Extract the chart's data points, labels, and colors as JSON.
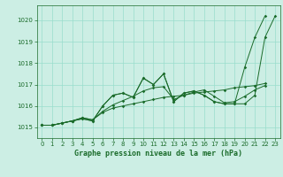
{
  "title": "Graphe pression niveau de la mer (hPa)",
  "background_color": "#cceee4",
  "grid_color": "#99ddcc",
  "line_color": "#1a6b2a",
  "xlim": [
    -0.5,
    23.5
  ],
  "ylim": [
    1014.5,
    1020.7
  ],
  "yticks": [
    1015,
    1016,
    1017,
    1018,
    1019,
    1020
  ],
  "xticks": [
    0,
    1,
    2,
    3,
    4,
    5,
    6,
    7,
    8,
    9,
    10,
    11,
    12,
    13,
    14,
    15,
    16,
    17,
    18,
    19,
    20,
    21,
    22,
    23
  ],
  "series": [
    [
      1015.1,
      1015.1,
      1015.2,
      1015.3,
      1015.4,
      1015.3,
      1016.0,
      1016.5,
      1016.6,
      1016.4,
      1017.3,
      1017.0,
      1017.5,
      1016.2,
      1016.6,
      1016.7,
      1016.5,
      1016.2,
      1016.1,
      1016.1,
      1017.8,
      1019.2,
      1020.2,
      null
    ],
    [
      1015.1,
      1015.1,
      1015.2,
      1015.3,
      1015.45,
      1015.35,
      1015.75,
      1016.05,
      1016.25,
      1016.45,
      1016.7,
      1016.85,
      1016.9,
      1016.3,
      1016.5,
      1016.65,
      1016.75,
      1016.45,
      1016.15,
      1016.2,
      1016.45,
      1016.75,
      1016.95,
      null
    ],
    [
      1015.1,
      1015.1,
      1015.2,
      1015.3,
      1015.45,
      1015.35,
      1015.7,
      1015.9,
      1016.0,
      1016.1,
      1016.2,
      1016.3,
      1016.4,
      1016.45,
      1016.5,
      1016.6,
      1016.65,
      1016.7,
      1016.75,
      1016.85,
      1016.9,
      1016.95,
      1017.05,
      null
    ],
    [
      1015.1,
      1015.1,
      1015.2,
      1015.3,
      1015.4,
      1015.3,
      1016.0,
      1016.5,
      1016.6,
      1016.4,
      1017.3,
      1017.0,
      1017.5,
      1016.2,
      1016.6,
      1016.7,
      1016.5,
      1016.2,
      1016.1,
      1016.1,
      1016.1,
      1016.5,
      1019.2,
      1020.2
    ]
  ],
  "title_fontsize": 6.0,
  "tick_fontsize": 5.0
}
